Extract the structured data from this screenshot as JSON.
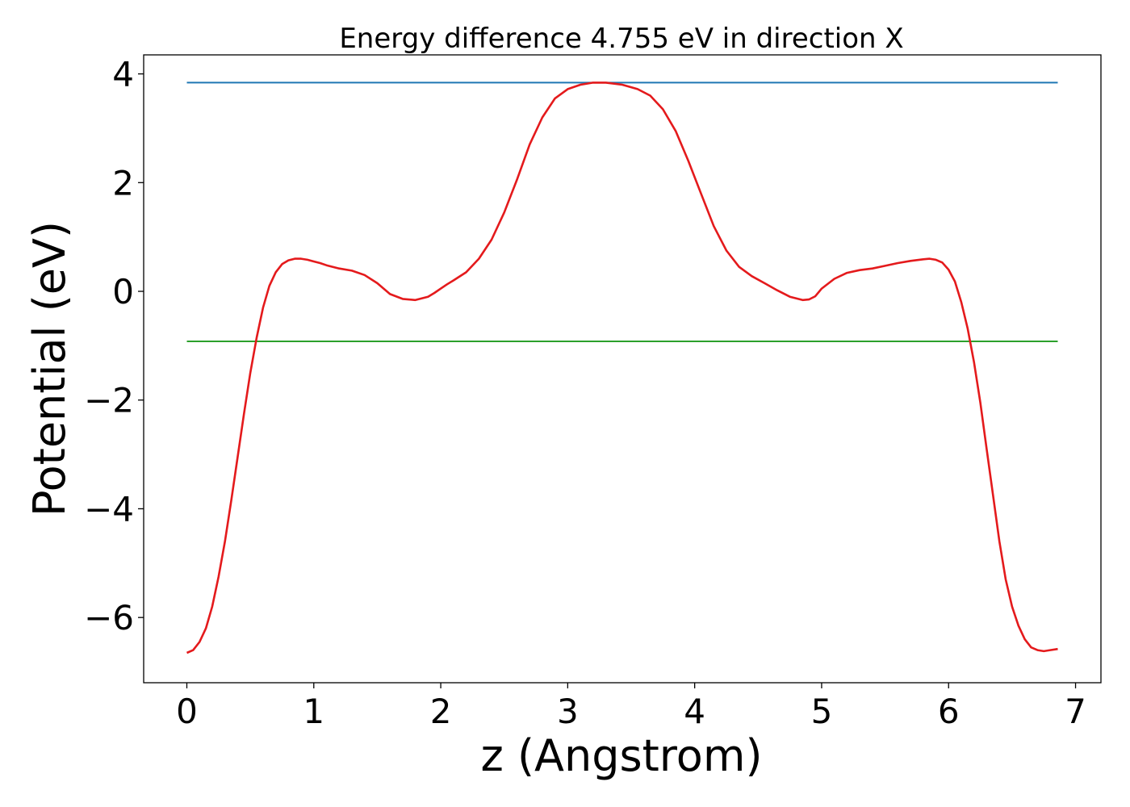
{
  "chart_data": {
    "type": "line",
    "title": "Energy difference 4.755 eV in direction X",
    "xlabel": "z (Angstrom)",
    "ylabel": "Potential (eV)",
    "xlim": [
      -0.34,
      7.2
    ],
    "ylim": [
      -7.2,
      4.35
    ],
    "xticks": [
      0,
      1,
      2,
      3,
      4,
      5,
      6,
      7
    ],
    "xtick_labels": [
      "0",
      "1",
      "2",
      "3",
      "4",
      "5",
      "6",
      "7"
    ],
    "yticks": [
      -6,
      -4,
      -2,
      0,
      2,
      4
    ],
    "ytick_labels": [
      "−6",
      "−4",
      "−2",
      "0",
      "2",
      "4"
    ],
    "grid": false,
    "series": [
      {
        "color": "#1f77b4",
        "x": [
          0,
          6.86
        ],
        "y": [
          3.84,
          3.84
        ]
      },
      {
        "color": "#2ca02c",
        "x": [
          0,
          6.86
        ],
        "y": [
          -0.92,
          -0.92
        ]
      },
      {
        "color": "#e41a1c",
        "x": [
          0,
          0.05,
          0.1,
          0.15,
          0.2,
          0.25,
          0.3,
          0.35,
          0.4,
          0.45,
          0.5,
          0.55,
          0.6,
          0.65,
          0.7,
          0.75,
          0.8,
          0.85,
          0.9,
          0.95,
          1.0,
          1.05,
          1.1,
          1.2,
          1.3,
          1.4,
          1.5,
          1.6,
          1.7,
          1.8,
          1.9,
          1.95,
          2.0,
          2.05,
          2.1,
          2.2,
          2.3,
          2.4,
          2.5,
          2.6,
          2.7,
          2.8,
          2.9,
          3.0,
          3.1,
          3.2,
          3.3,
          3.43,
          3.55,
          3.65,
          3.75,
          3.85,
          3.95,
          4.05,
          4.15,
          4.25,
          4.35,
          4.45,
          4.55,
          4.65,
          4.75,
          4.85,
          4.9,
          4.95,
          5.0,
          5.1,
          5.2,
          5.3,
          5.4,
          5.5,
          5.6,
          5.7,
          5.8,
          5.85,
          5.9,
          5.95,
          6.0,
          6.05,
          6.1,
          6.15,
          6.2,
          6.25,
          6.3,
          6.35,
          6.4,
          6.45,
          6.5,
          6.55,
          6.6,
          6.65,
          6.7,
          6.75,
          6.8,
          6.86
        ],
        "y": [
          -6.65,
          -6.6,
          -6.45,
          -6.2,
          -5.8,
          -5.25,
          -4.6,
          -3.85,
          -3.05,
          -2.25,
          -1.5,
          -0.85,
          -0.3,
          0.1,
          0.35,
          0.5,
          0.57,
          0.6,
          0.6,
          0.58,
          0.55,
          0.52,
          0.48,
          0.42,
          0.38,
          0.3,
          0.15,
          -0.05,
          -0.14,
          -0.16,
          -0.1,
          -0.03,
          0.05,
          0.13,
          0.2,
          0.35,
          0.6,
          0.95,
          1.45,
          2.05,
          2.7,
          3.2,
          3.55,
          3.72,
          3.8,
          3.84,
          3.84,
          3.8,
          3.72,
          3.6,
          3.35,
          2.95,
          2.4,
          1.8,
          1.2,
          0.75,
          0.45,
          0.28,
          0.15,
          0.02,
          -0.1,
          -0.16,
          -0.15,
          -0.09,
          0.05,
          0.23,
          0.34,
          0.39,
          0.42,
          0.47,
          0.52,
          0.56,
          0.59,
          0.6,
          0.58,
          0.53,
          0.4,
          0.18,
          -0.2,
          -0.68,
          -1.3,
          -2.05,
          -2.9,
          -3.75,
          -4.6,
          -5.3,
          -5.8,
          -6.15,
          -6.4,
          -6.55,
          -6.6,
          -6.62,
          -6.6,
          -6.58
        ]
      }
    ]
  }
}
